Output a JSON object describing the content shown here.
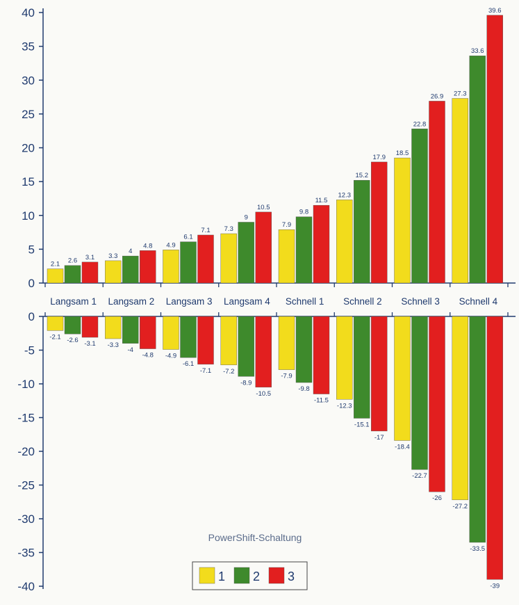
{
  "chart_data": {
    "type": "bar",
    "title": "PowerShift-Schaltung",
    "categories": [
      "Langsam 1",
      "Langsam 2",
      "Langsam 3",
      "Langsam 4",
      "Schnell 1",
      "Schnell 2",
      "Schnell 3",
      "Schnell 4"
    ],
    "upper": {
      "ylim": [
        0,
        40
      ],
      "yticks": [
        0,
        5,
        10,
        15,
        20,
        25,
        30,
        35,
        40
      ],
      "series": [
        {
          "name": "1",
          "color": "#f2dc1c",
          "values": [
            2.1,
            3.3,
            4.9,
            7.3,
            7.9,
            12.3,
            18.5,
            27.3
          ]
        },
        {
          "name": "2",
          "color": "#3e8a2c",
          "values": [
            2.6,
            4,
            6.1,
            9,
            9.8,
            15.2,
            22.8,
            33.6
          ]
        },
        {
          "name": "3",
          "color": "#e21f1f",
          "values": [
            3.1,
            4.8,
            7.1,
            10.5,
            11.5,
            17.9,
            26.9,
            39.6
          ]
        }
      ]
    },
    "lower": {
      "ylim": [
        -40,
        0
      ],
      "yticks": [
        0,
        -5,
        -10,
        -15,
        -20,
        -25,
        -30,
        -35,
        -40
      ],
      "series": [
        {
          "name": "1",
          "color": "#f2dc1c",
          "values": [
            -2.1,
            -3.3,
            -4.9,
            -7.2,
            -7.9,
            -12.3,
            -18.4,
            -27.2
          ]
        },
        {
          "name": "2",
          "color": "#3e8a2c",
          "values": [
            -2.6,
            -4,
            -6.1,
            -8.9,
            -9.8,
            -15.1,
            -22.7,
            -33.5
          ]
        },
        {
          "name": "3",
          "color": "#e21f1f",
          "values": [
            -3.1,
            -4.8,
            -7.1,
            -10.5,
            -11.5,
            -17,
            -26,
            -39
          ]
        }
      ]
    },
    "legend": {
      "items": [
        "1",
        "2",
        "3"
      ]
    }
  }
}
